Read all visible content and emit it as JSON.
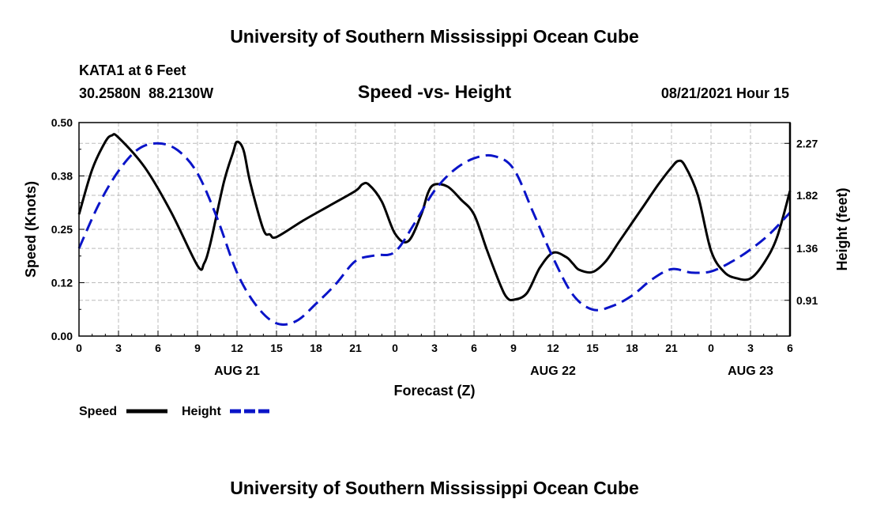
{
  "header": {
    "title": "University of Southern Mississippi Ocean Cube",
    "station": "KATA1 at 6 Feet",
    "coords": "30.2580N  88.2130W",
    "chart_title": "Speed -vs- Height",
    "datetime": "08/21/2021 Hour 15"
  },
  "footer": {
    "title": "University of Southern Mississippi Ocean Cube"
  },
  "colors": {
    "speed": "#000000",
    "height": "#0a14c8",
    "grid": "#bbbbbb"
  },
  "chart_data": {
    "type": "line",
    "title": "Speed -vs- Height",
    "xlabel": "Forecast (Z)",
    "ylabel": "Speed (Knots)",
    "y2label": "Height (feet)",
    "x_range": [
      0,
      54
    ],
    "x_tick_values": [
      0,
      3,
      6,
      9,
      12,
      15,
      18,
      21,
      24,
      27,
      30,
      33,
      36,
      39,
      42,
      45,
      48,
      51,
      54
    ],
    "x_tick_labels": [
      "0",
      "3",
      "6",
      "9",
      "12",
      "15",
      "18",
      "21",
      "0",
      "3",
      "6",
      "9",
      "12",
      "15",
      "18",
      "21",
      "0",
      "3",
      "6"
    ],
    "date_labels": [
      {
        "x": 12,
        "label": "AUG 21"
      },
      {
        "x": 36,
        "label": "AUG 22"
      },
      {
        "x": 51,
        "label": "AUG 23"
      }
    ],
    "ylim": [
      0,
      0.5
    ],
    "y_tick_values": [
      0,
      0.125,
      0.25,
      0.375,
      0.5
    ],
    "y_tick_labels": [
      "0.00",
      "0.12",
      "0.25",
      "0.38",
      "0.50"
    ],
    "y2lim": [
      0.6,
      2.45
    ],
    "y2_tick_values": [
      0.91,
      1.36,
      1.82,
      2.27
    ],
    "y2_tick_labels": [
      "0.91",
      "1.36",
      "1.82",
      "2.27"
    ],
    "grid": true,
    "series": [
      {
        "name": "Speed",
        "axis": "left",
        "style": "solid",
        "x": [
          0,
          1,
          2,
          2.5,
          3,
          5,
          7,
          9,
          9.5,
          10,
          11,
          11.7,
          12,
          12.5,
          13,
          14,
          14.5,
          15,
          17,
          19,
          21,
          21.5,
          22,
          23,
          24,
          25,
          26,
          26.5,
          27,
          28,
          29,
          30,
          31,
          32,
          32.5,
          33,
          34,
          35,
          36,
          37,
          37.5,
          38,
          39,
          40,
          41,
          42,
          43,
          44,
          45,
          45.5,
          46,
          47,
          48,
          49,
          50,
          51,
          52,
          53,
          54
        ],
        "values": [
          0.285,
          0.39,
          0.455,
          0.47,
          0.465,
          0.395,
          0.29,
          0.165,
          0.17,
          0.22,
          0.36,
          0.43,
          0.455,
          0.435,
          0.36,
          0.25,
          0.238,
          0.232,
          0.27,
          0.305,
          0.34,
          0.355,
          0.355,
          0.315,
          0.24,
          0.222,
          0.285,
          0.335,
          0.355,
          0.35,
          0.32,
          0.285,
          0.2,
          0.12,
          0.09,
          0.085,
          0.1,
          0.16,
          0.195,
          0.185,
          0.17,
          0.155,
          0.15,
          0.175,
          0.22,
          0.265,
          0.31,
          0.355,
          0.395,
          0.41,
          0.4,
          0.33,
          0.2,
          0.15,
          0.135,
          0.135,
          0.17,
          0.23,
          0.34
        ]
      },
      {
        "name": "Height",
        "axis": "right",
        "style": "dashed",
        "x": [
          0,
          1.5,
          3,
          4.5,
          6,
          7.5,
          9,
          10.5,
          12,
          13.5,
          15,
          16.5,
          18,
          19.5,
          21,
          22.5,
          24,
          25.5,
          27,
          28.5,
          30,
          31.5,
          33,
          34.5,
          36,
          37.5,
          39,
          40.5,
          42,
          43.5,
          45,
          46.5,
          48,
          49.5,
          51,
          52.5,
          54
        ],
        "values": [
          1.36,
          1.74,
          2.03,
          2.22,
          2.27,
          2.21,
          2.01,
          1.62,
          1.15,
          0.86,
          0.71,
          0.73,
          0.88,
          1.05,
          1.25,
          1.3,
          1.33,
          1.58,
          1.86,
          2.04,
          2.14,
          2.16,
          2.05,
          1.67,
          1.28,
          0.96,
          0.83,
          0.86,
          0.95,
          1.09,
          1.18,
          1.15,
          1.16,
          1.24,
          1.35,
          1.49,
          1.67
        ]
      }
    ],
    "legend": [
      {
        "label": "Speed",
        "style": "solid"
      },
      {
        "label": "Height",
        "style": "dashed"
      }
    ]
  }
}
